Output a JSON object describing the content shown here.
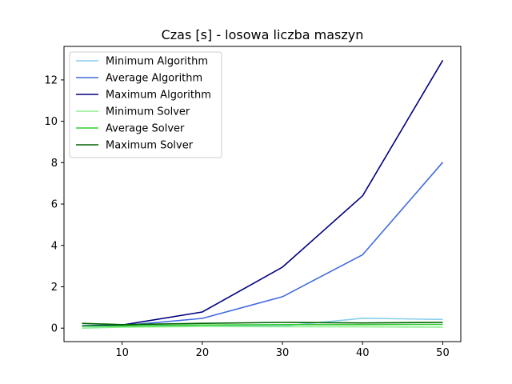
{
  "chart_data": {
    "type": "line",
    "title": "Czas [s] - losowa liczba maszyn",
    "xlabel": "",
    "ylabel": "",
    "x": [
      5,
      10,
      20,
      30,
      40,
      50
    ],
    "xlim": [
      2.75,
      52.25
    ],
    "ylim": [
      -0.65,
      13.62
    ],
    "xticks": [
      10,
      20,
      30,
      40,
      50
    ],
    "yticks": [
      0,
      2,
      4,
      6,
      8,
      10,
      12
    ],
    "grid": false,
    "legend_position": "top-left",
    "series": [
      {
        "name": "Minimum Algorithm",
        "color": "#87ceeb",
        "values": [
          0.08,
          0.1,
          0.15,
          0.1,
          0.48,
          0.42
        ]
      },
      {
        "name": "Average Algorithm",
        "color": "#4169e1",
        "values": [
          0.1,
          0.12,
          0.47,
          1.52,
          3.55,
          8.02
        ]
      },
      {
        "name": "Maximum Algorithm",
        "color": "#000080",
        "values": [
          0.12,
          0.15,
          0.78,
          2.95,
          6.4,
          12.95
        ]
      },
      {
        "name": "Minimum Solver",
        "color": "#90ee90",
        "values": [
          0.0,
          0.05,
          0.08,
          0.07,
          0.06,
          0.05
        ]
      },
      {
        "name": "Average Solver",
        "color": "#32cd32",
        "values": [
          0.1,
          0.1,
          0.15,
          0.17,
          0.17,
          0.18
        ]
      },
      {
        "name": "Maximum Solver",
        "color": "#006400",
        "values": [
          0.23,
          0.17,
          0.23,
          0.28,
          0.25,
          0.28
        ]
      }
    ]
  }
}
